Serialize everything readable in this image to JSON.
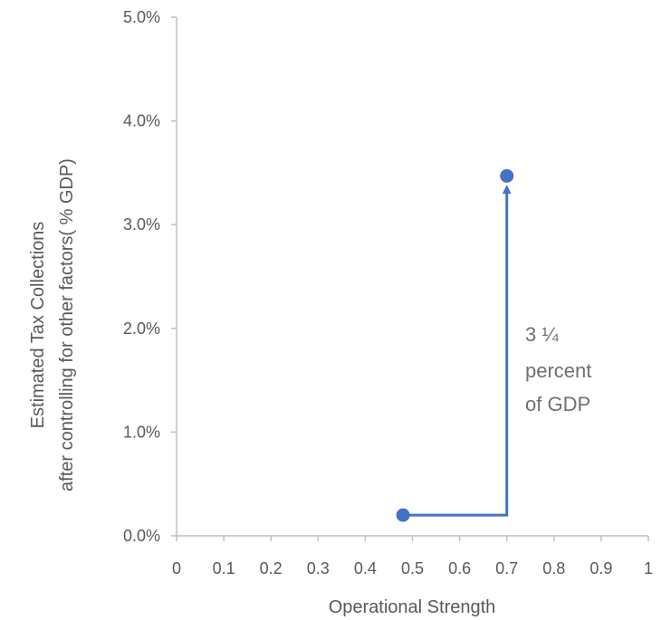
{
  "chart_data": {
    "type": "scatter",
    "xlabel": "Operational Strength",
    "ylabel_lines": [
      "Estimated Tax Collections",
      "after controlling for other factors( %  GDP)"
    ],
    "xlim": [
      0,
      1
    ],
    "ylim": [
      0,
      0.05
    ],
    "x_ticks": [
      {
        "value": 0,
        "label": "0"
      },
      {
        "value": 0.1,
        "label": "0.1"
      },
      {
        "value": 0.2,
        "label": "0.2"
      },
      {
        "value": 0.3,
        "label": "0.3"
      },
      {
        "value": 0.4,
        "label": "0.4"
      },
      {
        "value": 0.5,
        "label": "0.5"
      },
      {
        "value": 0.6,
        "label": "0.6"
      },
      {
        "value": 0.7,
        "label": "0.7"
      },
      {
        "value": 0.8,
        "label": "0.8"
      },
      {
        "value": 0.9,
        "label": "0.9"
      },
      {
        "value": 1,
        "label": "1"
      }
    ],
    "y_ticks": [
      {
        "value": 0,
        "label": "0.0%"
      },
      {
        "value": 0.01,
        "label": "1.0%"
      },
      {
        "value": 0.02,
        "label": "2.0%"
      },
      {
        "value": 0.03,
        "label": "3.0%"
      },
      {
        "value": 0.04,
        "label": "4.0%"
      },
      {
        "value": 0.05,
        "label": "5.0%"
      }
    ],
    "grid": false,
    "points": [
      {
        "x": 0.48,
        "y": 0.002
      },
      {
        "x": 0.7,
        "y": 0.0347
      }
    ],
    "arrow": {
      "path": [
        [
          0.48,
          0.002
        ],
        [
          0.7,
          0.002
        ],
        [
          0.7,
          0.0334
        ]
      ]
    },
    "annotation_lines": [
      "3 ¼",
      "percent",
      "of GDP"
    ],
    "colors": {
      "marker": "#4472c4",
      "arrow": "#4472c4",
      "axis": "#bfbfbf",
      "text": "#595959",
      "annotation": "#707070"
    }
  }
}
